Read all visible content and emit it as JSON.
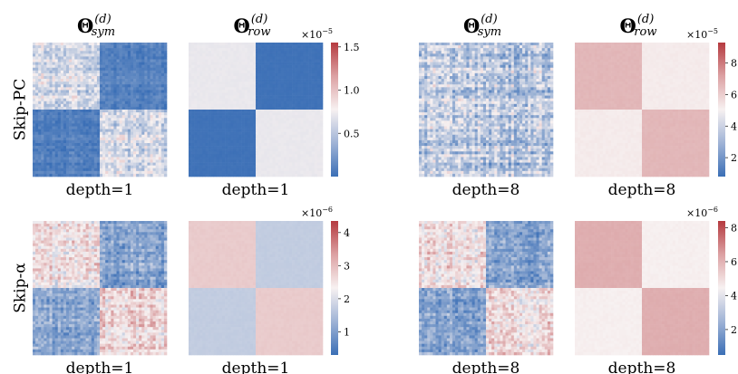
{
  "row_labels": [
    "Skip-PC",
    "Skip-α"
  ],
  "column_titles": [
    {
      "symbol": "Θ",
      "superscript": "(d)",
      "subscript": "sym"
    },
    {
      "symbol": "Θ",
      "superscript": "(d)",
      "subscript": "row"
    },
    {
      "symbol": "Θ",
      "superscript": "(d)",
      "subscript": "sym"
    },
    {
      "symbol": "Θ",
      "superscript": "(d)",
      "subscript": "row"
    }
  ],
  "colormap": {
    "low": "#3b6fb6",
    "mid": "#f7f1f1",
    "high": "#b53a3f"
  },
  "chart_data": [
    {
      "type": "heatmap",
      "row": "Skip-PC",
      "column": "sym",
      "xlabel": "depth=1",
      "blocks": [
        [
          "light",
          "dark"
        ],
        [
          "dark",
          "light"
        ]
      ],
      "texture": "noisy",
      "colorbar": null
    },
    {
      "type": "heatmap",
      "row": "Skip-PC",
      "column": "row",
      "xlabel": "depth=1",
      "block_values": [
        [
          0.72,
          0.02
        ],
        [
          0.02,
          0.72
        ]
      ],
      "colorbar": {
        "min": 0.0,
        "max": 1.55,
        "ticks": [
          0.5,
          1.0,
          1.5
        ],
        "tick_labels": [
          "0.5",
          "1.0",
          "1.5"
        ],
        "multiplier_base": "×10",
        "multiplier_exp": "−5"
      }
    },
    {
      "type": "heatmap",
      "row": "Skip-PC",
      "column": "sym",
      "xlabel": "depth=8",
      "blocks": [
        [
          "mixed",
          "mixed"
        ],
        [
          "mixed",
          "mixed"
        ]
      ],
      "texture": "noisy",
      "colorbar": null
    },
    {
      "type": "heatmap",
      "row": "Skip-PC",
      "column": "row",
      "xlabel": "depth=8",
      "block_values": [
        [
          6.4,
          5.2
        ],
        [
          5.2,
          6.4
        ]
      ],
      "colorbar": {
        "min": 0.8,
        "max": 9.3,
        "ticks": [
          2,
          4,
          6,
          8
        ],
        "tick_labels": [
          "2",
          "4",
          "6",
          "8"
        ],
        "multiplier_base": "×10",
        "multiplier_exp": "−5"
      }
    },
    {
      "type": "heatmap",
      "row": "Skip-α",
      "column": "sym",
      "xlabel": "depth=1",
      "blocks": [
        [
          "reddish",
          "bluish"
        ],
        [
          "bluish",
          "reddish"
        ]
      ],
      "texture": "noisy",
      "colorbar": null
    },
    {
      "type": "heatmap",
      "row": "Skip-α",
      "column": "row",
      "xlabel": "depth=1",
      "block_values": [
        [
          2.75,
          1.75
        ],
        [
          1.75,
          2.75
        ]
      ],
      "colorbar": {
        "min": 0.3,
        "max": 4.35,
        "ticks": [
          1,
          2,
          3,
          4
        ],
        "tick_labels": [
          "1",
          "2",
          "3",
          "4"
        ],
        "multiplier_base": "×10",
        "multiplier_exp": "−6"
      }
    },
    {
      "type": "heatmap",
      "row": "Skip-α",
      "column": "sym",
      "xlabel": "depth=8",
      "blocks": [
        [
          "reddish",
          "bluish"
        ],
        [
          "bluish",
          "reddish"
        ]
      ],
      "texture": "noisy",
      "colorbar": null
    },
    {
      "type": "heatmap",
      "row": "Skip-α",
      "column": "row",
      "xlabel": "depth=8",
      "block_values": [
        [
          5.9,
          4.5
        ],
        [
          4.5,
          5.9
        ]
      ],
      "colorbar": {
        "min": 0.5,
        "max": 8.4,
        "ticks": [
          2,
          4,
          6,
          8
        ],
        "tick_labels": [
          "2",
          "4",
          "6",
          "8"
        ],
        "multiplier_base": "×10",
        "multiplier_exp": "−6"
      }
    }
  ]
}
